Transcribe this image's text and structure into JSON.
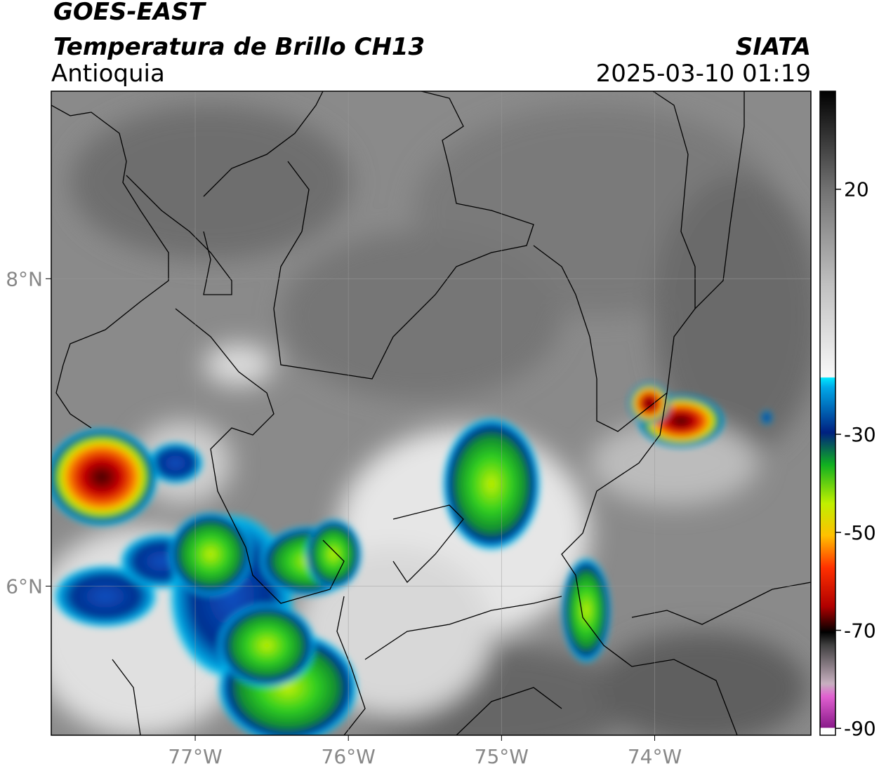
{
  "header": {
    "product": "GOES-EAST",
    "title": "Temperatura de Brillo CH13",
    "region": "Antioquia",
    "agency": "SIATA",
    "datetime": "2025-03-10 01:19"
  },
  "map": {
    "xlim": [
      -77.94,
      -72.98
    ],
    "ylim": [
      5.03,
      9.22
    ],
    "xticks": [
      {
        "value": -77,
        "label": "77°W"
      },
      {
        "value": -76,
        "label": "76°W"
      },
      {
        "value": -75,
        "label": "75°W"
      },
      {
        "value": -74,
        "label": "74°W"
      }
    ],
    "yticks": [
      {
        "value": 8,
        "label": "8°N"
      },
      {
        "value": 6,
        "label": "6°N"
      }
    ],
    "grid": true
  },
  "colorbar": {
    "ylim": [
      -91.4,
      40
    ],
    "yticks": [
      20,
      -30,
      -50,
      -70,
      -90
    ]
  }
}
